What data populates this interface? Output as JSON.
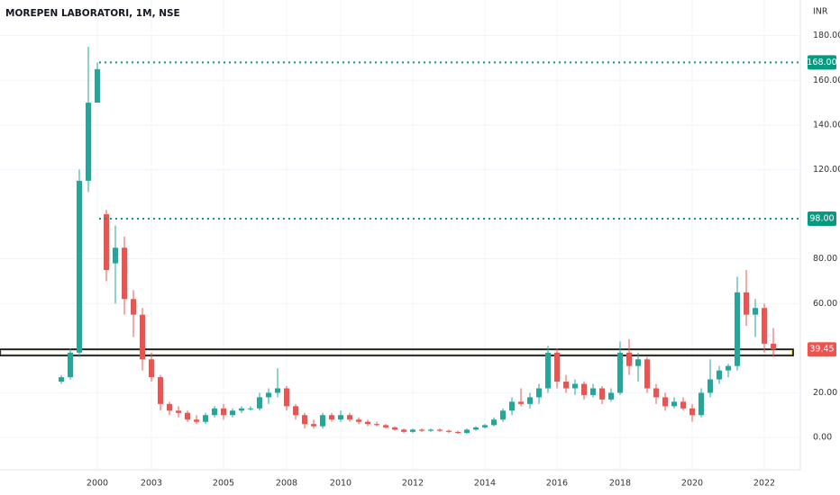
{
  "chart_data": {
    "type": "candlestick",
    "title": "MOREPEN LABORATORI, 1M, NSE",
    "currency": "INR",
    "up_color": "#26a69a",
    "down_color": "#ef5350",
    "categories": [
      null,
      null,
      null,
      null,
      "2000",
      null,
      null,
      null,
      null,
      null,
      "2003",
      null,
      null,
      null,
      null,
      null,
      null,
      null,
      "2005",
      null,
      null,
      null,
      null,
      null,
      null,
      "2008",
      null,
      null,
      null,
      null,
      null,
      "2010",
      null,
      null,
      null,
      null,
      null,
      null,
      null,
      "2012",
      null,
      null,
      null,
      null,
      null,
      null,
      null,
      "2014",
      null,
      null,
      null,
      null,
      null,
      null,
      null,
      "2016",
      null,
      null,
      null,
      null,
      null,
      null,
      "2018",
      null,
      null,
      null,
      null,
      null,
      null,
      null,
      "2020",
      null,
      null,
      null,
      null,
      null,
      null,
      null,
      "2022",
      null
    ],
    "open": [
      25,
      27,
      38,
      115,
      150,
      100,
      78,
      85,
      62,
      55,
      35,
      27,
      15,
      12,
      11,
      8,
      7,
      10,
      13,
      10,
      12,
      13,
      13,
      18,
      20,
      22,
      14,
      10,
      6,
      5,
      10,
      8,
      10,
      8,
      7,
      6,
      5.5,
      4.5,
      3.5,
      2.5,
      3.5,
      3,
      3.5,
      3,
      2.5,
      2,
      3.5,
      4.5,
      5.5,
      8,
      12,
      16,
      15,
      18,
      22,
      38,
      25,
      22,
      24,
      19,
      22,
      17,
      20,
      38,
      32,
      35,
      22,
      18,
      14,
      16,
      13,
      10,
      20,
      26,
      30,
      32,
      65,
      55,
      58,
      42
    ],
    "high": [
      28,
      40,
      120,
      175,
      168,
      102,
      95,
      90,
      66,
      58,
      38,
      28,
      16,
      14,
      12,
      10,
      11,
      14,
      15,
      13,
      14,
      14,
      20,
      22,
      31,
      23,
      15,
      11,
      8,
      11,
      11,
      12,
      11,
      9,
      8,
      7,
      6,
      5,
      4,
      4,
      4,
      4,
      4,
      3.5,
      3,
      4,
      5,
      6,
      9,
      13,
      18,
      22,
      20,
      24,
      41,
      40,
      28,
      26,
      25,
      24,
      23,
      22,
      43,
      44,
      38,
      36,
      24,
      20,
      18,
      18,
      15,
      22,
      35,
      32,
      33,
      72,
      75,
      62,
      60,
      49
    ],
    "low": [
      24,
      26,
      36,
      110,
      150,
      70,
      60,
      55,
      45,
      30,
      25,
      12,
      10,
      9,
      7,
      6,
      6,
      9,
      8,
      9,
      11,
      12,
      12,
      15,
      18,
      12,
      8,
      4,
      4,
      4,
      7,
      7,
      7,
      6,
      5,
      5,
      4,
      3,
      2,
      2,
      2.5,
      2.5,
      2.5,
      2,
      1.5,
      1.5,
      3,
      4,
      5,
      7,
      10,
      14,
      13,
      15,
      20,
      22,
      20,
      19,
      17,
      18,
      15,
      16,
      19,
      28,
      25,
      20,
      15,
      12,
      13,
      12,
      7,
      9,
      18,
      24,
      27,
      30,
      50,
      45,
      38,
      36
    ],
    "close": [
      27,
      38,
      115,
      150,
      165,
      75,
      85,
      62,
      55,
      35,
      27,
      15,
      12,
      11,
      8,
      7,
      10,
      13,
      10,
      12,
      13,
      13,
      18,
      20,
      22,
      14,
      10,
      6,
      5,
      10,
      8,
      10,
      8,
      7,
      6,
      5.5,
      4.5,
      3.5,
      2.5,
      3.5,
      3,
      3.5,
      3,
      2.5,
      2,
      3.5,
      4.5,
      5.5,
      8,
      12,
      16,
      15,
      18,
      22,
      38,
      25,
      22,
      24,
      19,
      22,
      17,
      20,
      38,
      32,
      35,
      22,
      18,
      14,
      16,
      13,
      10,
      20,
      26,
      30,
      32,
      65,
      55,
      58,
      42,
      39.45
    ],
    "levels": [
      {
        "value": 168,
        "label": "168.00",
        "color": "#089981"
      },
      {
        "value": 98,
        "label": "98.00",
        "color": "#089981"
      }
    ],
    "last_price": {
      "value": 39.45,
      "label": "39.45",
      "color": "#ef5350"
    },
    "zone": [
      36.7,
      39.5
    ],
    "ylim": [
      -14.5,
      196
    ],
    "yticks": [
      {
        "value": 0,
        "label": "0.00"
      },
      {
        "value": 20,
        "label": "20.00"
      },
      {
        "value": 60,
        "label": "60.00"
      },
      {
        "value": 80,
        "label": "80.00"
      },
      {
        "value": 120,
        "label": "120.00"
      },
      {
        "value": 140,
        "label": "140.00"
      },
      {
        "value": 160,
        "label": "160.00"
      },
      {
        "value": 180,
        "label": "180.00"
      }
    ],
    "grid": true
  }
}
